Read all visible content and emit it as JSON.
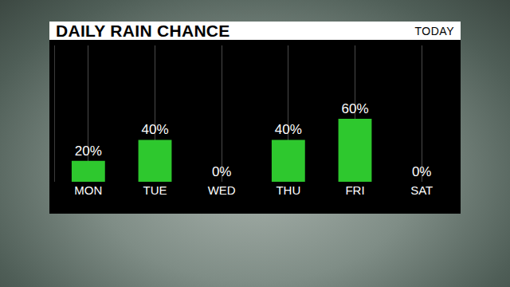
{
  "chart_data": {
    "type": "bar",
    "title": "DAILY RAIN CHANCE",
    "subtitle": "TODAY",
    "categories": [
      "MON",
      "TUE",
      "WED",
      "THU",
      "FRI",
      "SAT"
    ],
    "values": [
      20,
      40,
      0,
      40,
      60,
      0
    ],
    "value_labels": [
      "20%",
      "40%",
      "0%",
      "40%",
      "60%",
      "0%"
    ],
    "data_labels": true,
    "color": "#2ec82e",
    "ylim": [
      0,
      130
    ],
    "yticks": [],
    "grid": true,
    "tick_labels": "x"
  }
}
